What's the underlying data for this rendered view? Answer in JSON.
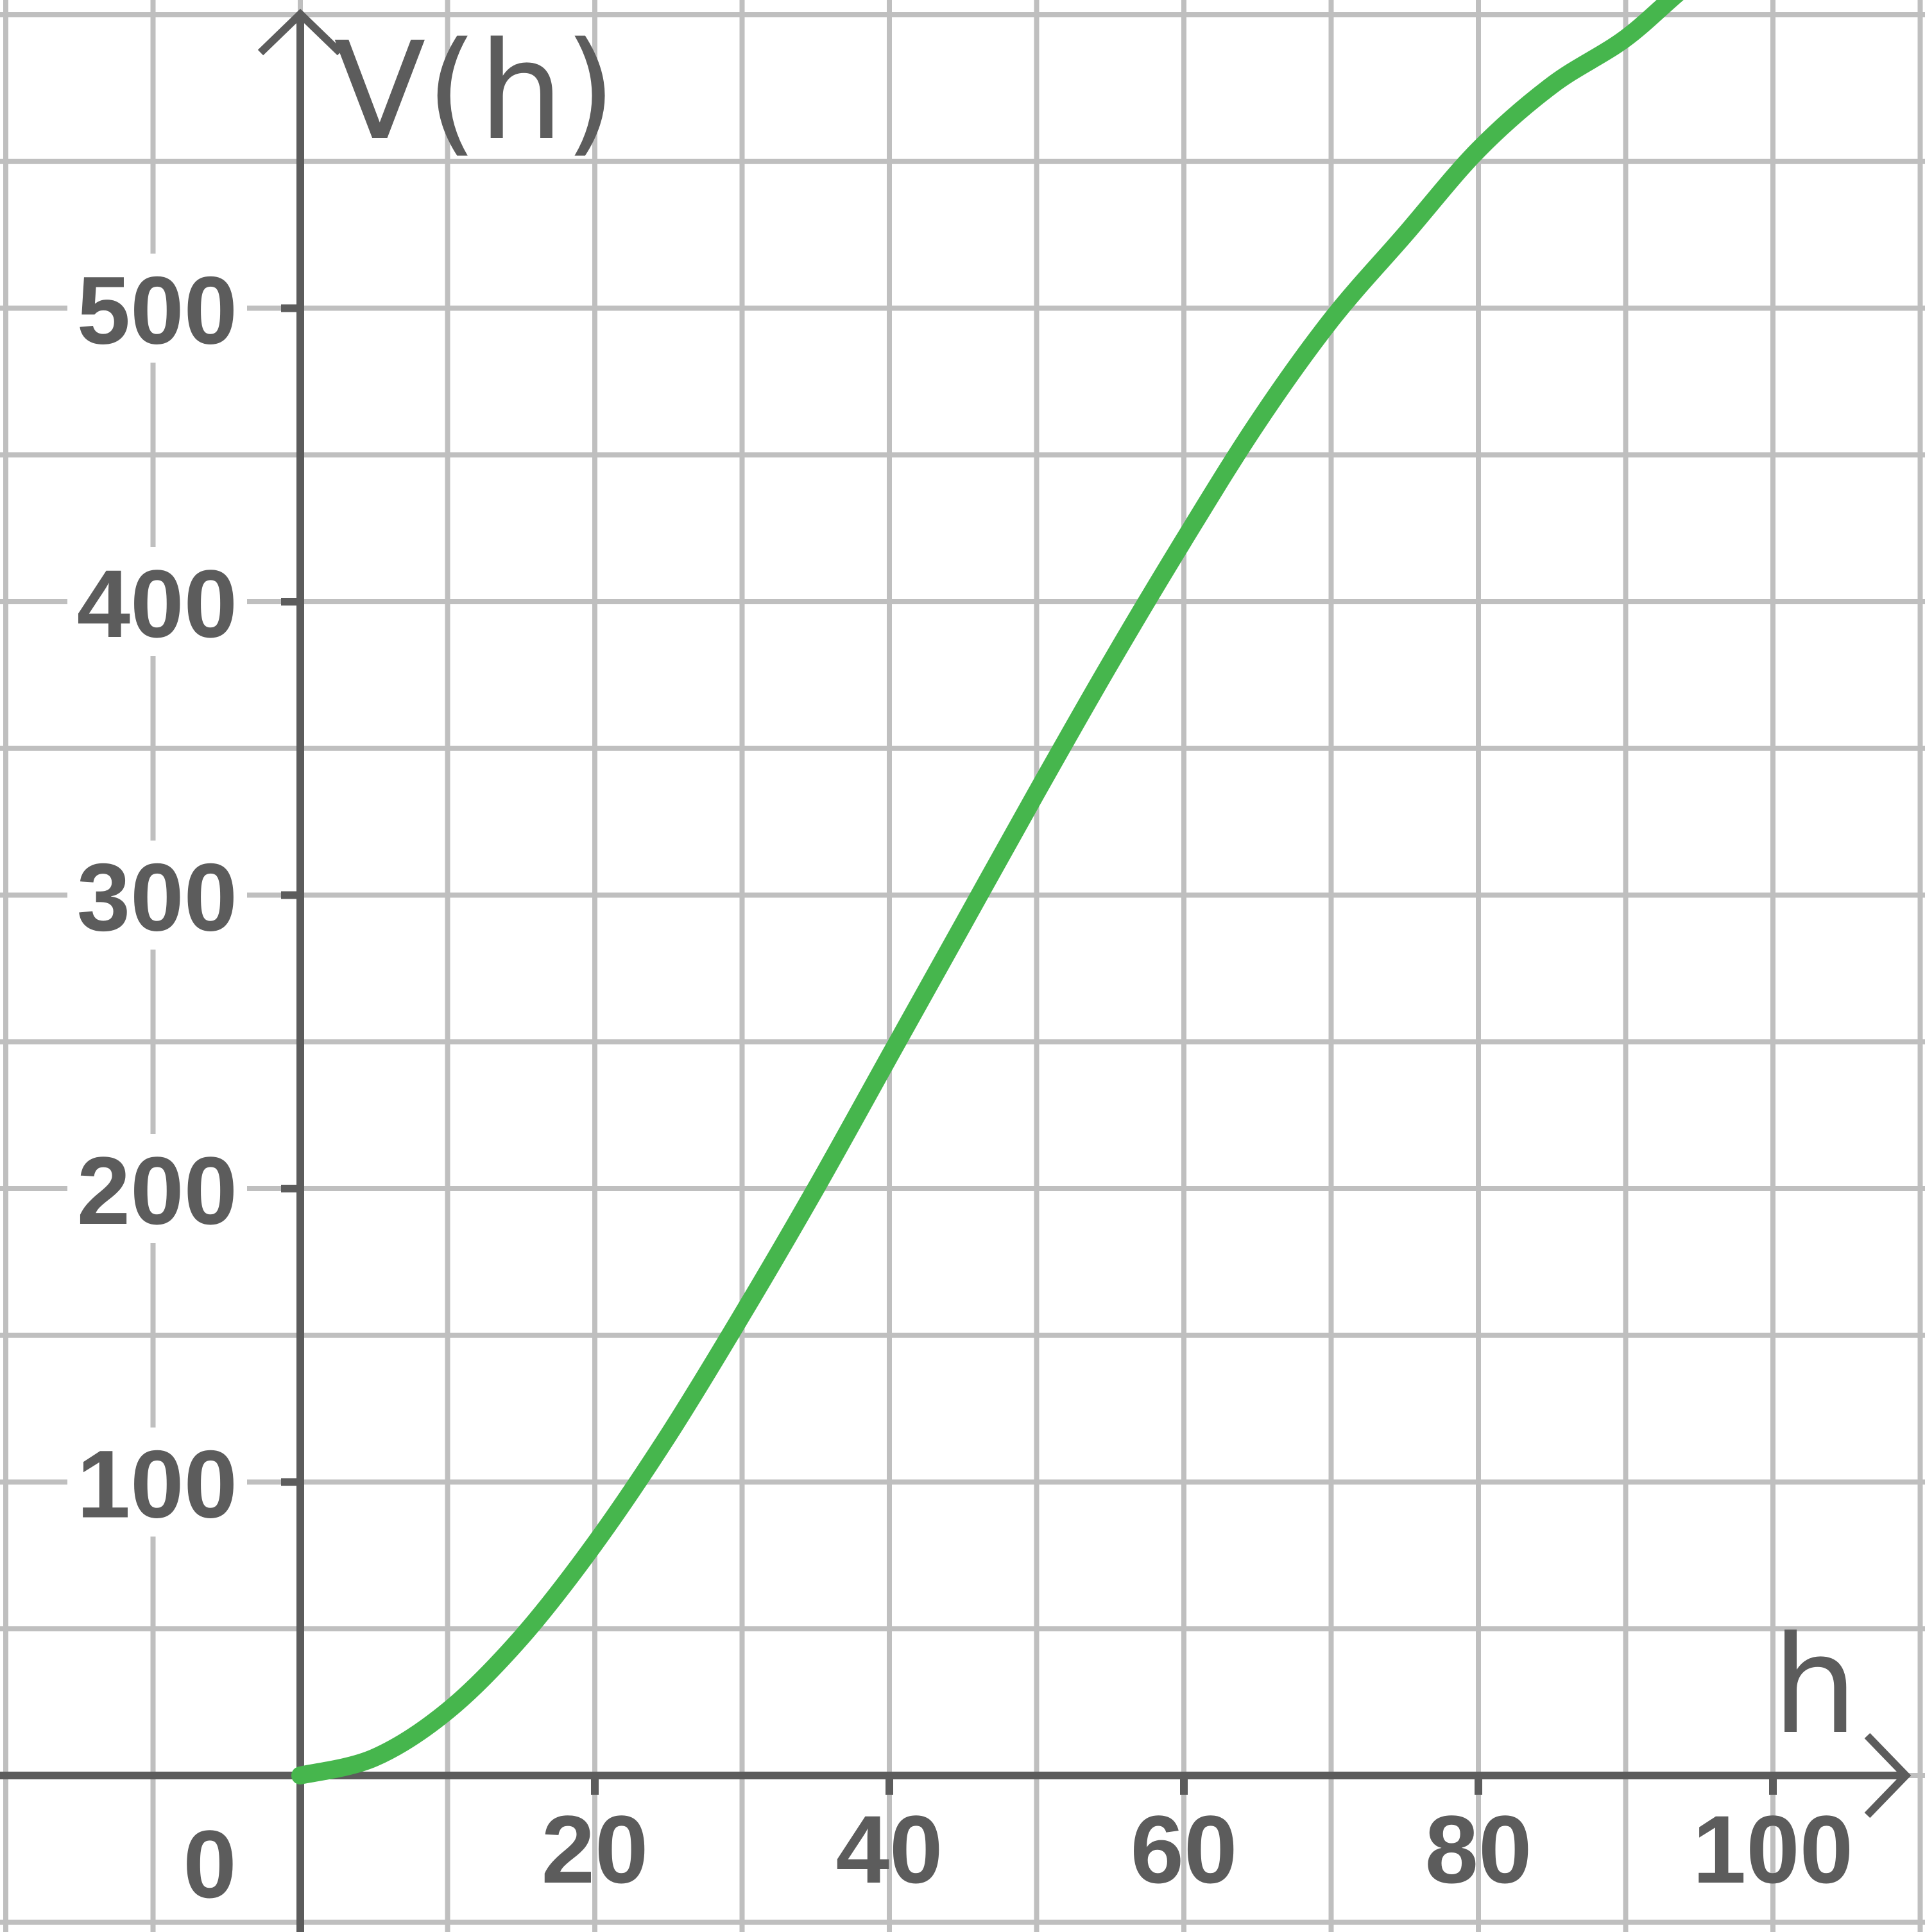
{
  "chart_data": {
    "type": "line",
    "title": "",
    "xlabel": "h",
    "ylabel": "V(h)",
    "xlim": [
      -20,
      110
    ],
    "ylim": [
      -50,
      600
    ],
    "x_ticks": [
      0,
      20,
      40,
      60,
      80,
      100
    ],
    "x_tick_labels": [
      "0",
      "20",
      "40",
      "60",
      "80",
      "100"
    ],
    "y_ticks": [
      100,
      200,
      300,
      400,
      500
    ],
    "y_tick_labels": [
      "100",
      "200",
      "300",
      "400",
      "500"
    ],
    "grid": true,
    "legend": "none",
    "series": [
      {
        "color": "#46b64d",
        "x": [
          0,
          5,
          10,
          15,
          20,
          25,
          30,
          35,
          40,
          45,
          50,
          55,
          60,
          65,
          70,
          75,
          80,
          85,
          90,
          95,
          100
        ],
        "y": [
          0,
          6,
          22,
          47,
          79,
          116,
          157,
          200,
          245,
          290,
          335,
          379,
          421,
          461,
          496,
          525,
          554,
          576,
          592,
          613,
          625
        ]
      }
    ]
  }
}
